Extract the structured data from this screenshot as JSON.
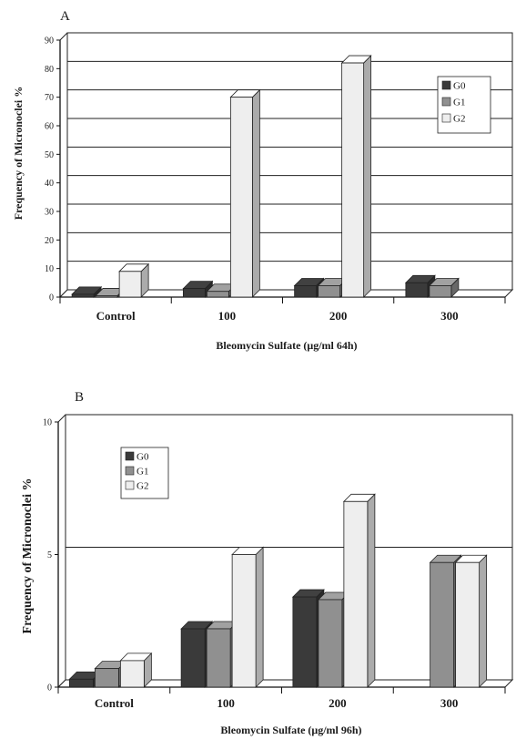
{
  "colors": {
    "G0": "#3a3a3a",
    "G1": "#909090",
    "G2": "#eeeeee"
  },
  "chart_data": [
    {
      "type": "bar",
      "panel": "A",
      "categories": [
        "Control",
        "100",
        "200",
        "300"
      ],
      "series": [
        {
          "name": "G0",
          "values": [
            1,
            3,
            4,
            5
          ]
        },
        {
          "name": "G1",
          "values": [
            0.5,
            2,
            4,
            4
          ]
        },
        {
          "name": "G2",
          "values": [
            9,
            70,
            82,
            null
          ]
        }
      ],
      "xlabel": "Bleomycin Sulfate (μg/ml 64h)",
      "ylabel": "Frequency of Micronoclei %",
      "ylim": [
        0,
        90
      ],
      "yticks": [
        0,
        10,
        20,
        30,
        40,
        50,
        60,
        70,
        80,
        90
      ],
      "grid": true,
      "legend": "top-right"
    },
    {
      "type": "bar",
      "panel": "B",
      "categories": [
        "Control",
        "100",
        "200",
        "300"
      ],
      "series": [
        {
          "name": "G0",
          "values": [
            0.3,
            2.2,
            3.4,
            null
          ]
        },
        {
          "name": "G1",
          "values": [
            0.7,
            2.2,
            3.3,
            4.7
          ]
        },
        {
          "name": "G2",
          "values": [
            1,
            5,
            7,
            4.7
          ]
        }
      ],
      "xlabel": "Bleomycin Sulfate (μg/ml 96h)",
      "ylabel": "Frequency of Micronoclei %",
      "ylim": [
        0,
        10
      ],
      "yticks": [
        0,
        5,
        10
      ],
      "grid": true,
      "legend": "top-left"
    }
  ]
}
